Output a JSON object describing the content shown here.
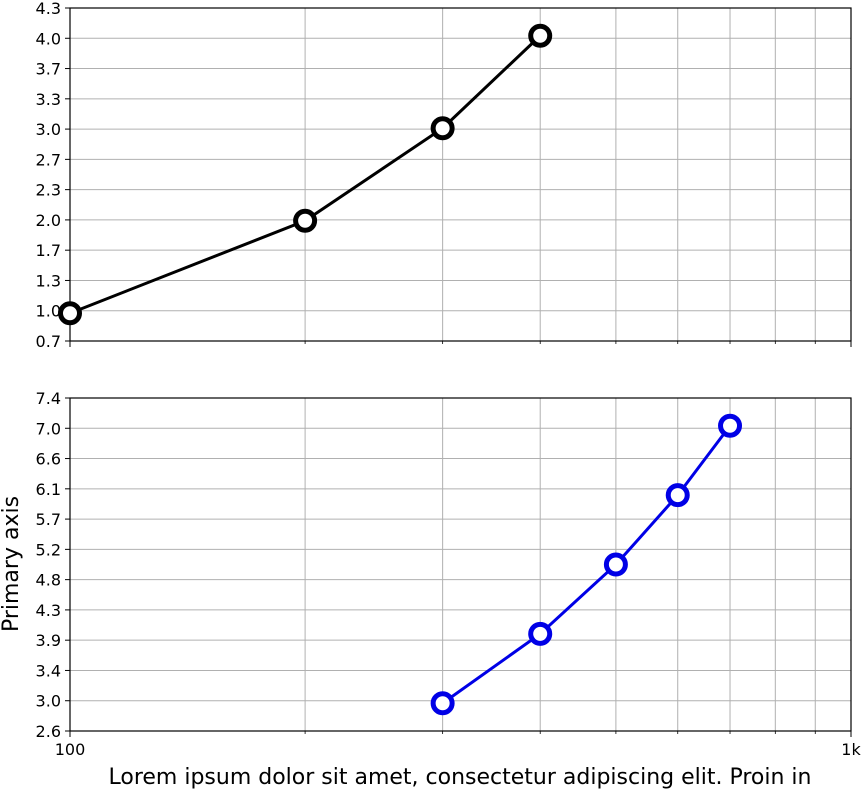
{
  "chart_data": [
    {
      "type": "line",
      "x_scale": "log",
      "xlim": [
        100,
        1000
      ],
      "ylim": [
        0.7,
        4.3
      ],
      "yticks": [
        "0.7",
        "1.0",
        "1.3",
        "1.7",
        "2.0",
        "2.3",
        "2.7",
        "3.0",
        "3.3",
        "3.7",
        "4.0",
        "4.3"
      ],
      "ylabel": "",
      "grid": true,
      "series": [
        {
          "x": [
            100,
            200,
            300,
            400
          ],
          "y": [
            1.0,
            2.0,
            3.0,
            4.0
          ],
          "color": "#000000"
        }
      ]
    },
    {
      "type": "line",
      "x_scale": "log",
      "xlim": [
        100,
        1000
      ],
      "xticks": [
        "100",
        "1k"
      ],
      "xlabel": "Lorem ipsum dolor sit amet, consectetur adipiscing elit. Proin in",
      "ylim": [
        2.6,
        7.4
      ],
      "yticks": [
        "2.6",
        "3.0",
        "3.4",
        "3.9",
        "4.3",
        "4.8",
        "5.2",
        "5.7",
        "6.1",
        "6.6",
        "7.0",
        "7.4"
      ],
      "ylabel": "Primary axis",
      "grid": true,
      "series": [
        {
          "x": [
            300,
            400,
            500,
            600,
            700
          ],
          "y": [
            3.0,
            4.0,
            5.0,
            6.0,
            7.0
          ],
          "color": "#0000e6"
        }
      ]
    }
  ]
}
